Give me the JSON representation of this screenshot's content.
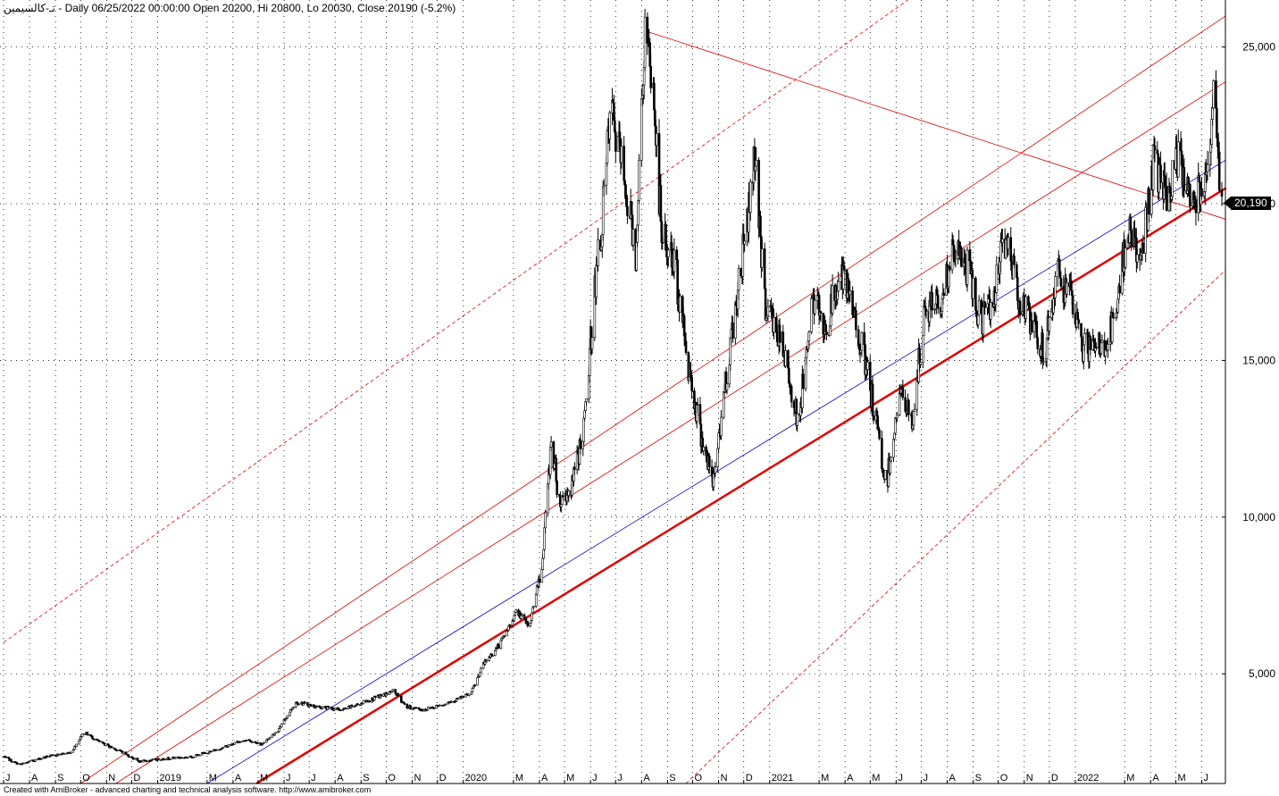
{
  "header": {
    "ticker": "تـ-كالسيمين",
    "summary": "- Daily 06/25/2022 00:00:00 Open 20200, Hi 20800, Lo 20030, Close 20190 (-5.2%)"
  },
  "footer": {
    "credit": "Created with AmiBroker - advanced charting and technical analysis software. http://www.amibroker.com"
  },
  "last_price_label": "20,190",
  "colors": {
    "background": "#ffffff",
    "candles": "#000000",
    "channel_red": "#e00000",
    "midline_blue": "#0000cc",
    "grid": "#000000",
    "price_label_bg": "#000000"
  },
  "chart_data": {
    "type": "candlestick",
    "title": "",
    "x_range": [
      "2018-07-01",
      "2022-06-25"
    ],
    "ylim": [
      1500,
      26500
    ],
    "y_ticks": [
      5000,
      10000,
      15000,
      20000,
      25000
    ],
    "y_tick_labels": [
      "5,000",
      "10,000",
      "15,000",
      "20,000",
      "25,000"
    ],
    "grid": "dotted",
    "x_ticks": [
      {
        "label": "J",
        "date": "2018-07-01"
      },
      {
        "label": "A",
        "date": "2018-08-01"
      },
      {
        "label": "S",
        "date": "2018-09-01"
      },
      {
        "label": "O",
        "date": "2018-10-01"
      },
      {
        "label": "N",
        "date": "2018-11-01"
      },
      {
        "label": "D",
        "date": "2018-12-01"
      },
      {
        "label": "2019",
        "date": "2019-01-01"
      },
      {
        "label": "M",
        "date": "2019-03-01"
      },
      {
        "label": "A",
        "date": "2019-04-01"
      },
      {
        "label": "M",
        "date": "2019-05-01"
      },
      {
        "label": "J",
        "date": "2019-06-01"
      },
      {
        "label": "J",
        "date": "2019-07-01"
      },
      {
        "label": "A",
        "date": "2019-08-01"
      },
      {
        "label": "S",
        "date": "2019-09-01"
      },
      {
        "label": "O",
        "date": "2019-10-01"
      },
      {
        "label": "N",
        "date": "2019-11-01"
      },
      {
        "label": "D",
        "date": "2019-12-01"
      },
      {
        "label": "2020",
        "date": "2020-01-01"
      },
      {
        "label": "M",
        "date": "2020-03-01"
      },
      {
        "label": "A",
        "date": "2020-04-01"
      },
      {
        "label": "M",
        "date": "2020-05-01"
      },
      {
        "label": "J",
        "date": "2020-06-01"
      },
      {
        "label": "J",
        "date": "2020-07-01"
      },
      {
        "label": "A",
        "date": "2020-08-01"
      },
      {
        "label": "S",
        "date": "2020-09-01"
      },
      {
        "label": "O",
        "date": "2020-10-01"
      },
      {
        "label": "N",
        "date": "2020-11-01"
      },
      {
        "label": "D",
        "date": "2020-12-01"
      },
      {
        "label": "2021",
        "date": "2021-01-01"
      },
      {
        "label": "M",
        "date": "2021-03-01"
      },
      {
        "label": "A",
        "date": "2021-04-01"
      },
      {
        "label": "M",
        "date": "2021-05-01"
      },
      {
        "label": "J",
        "date": "2021-06-01"
      },
      {
        "label": "J",
        "date": "2021-07-01"
      },
      {
        "label": "A",
        "date": "2021-08-01"
      },
      {
        "label": "S",
        "date": "2021-09-01"
      },
      {
        "label": "O",
        "date": "2021-10-01"
      },
      {
        "label": "N",
        "date": "2021-11-01"
      },
      {
        "label": "D",
        "date": "2021-12-01"
      },
      {
        "label": "2022",
        "date": "2022-01-01"
      },
      {
        "label": "M",
        "date": "2022-03-01"
      },
      {
        "label": "A",
        "date": "2022-04-01"
      },
      {
        "label": "M",
        "date": "2022-05-01"
      },
      {
        "label": "J",
        "date": "2022-06-01"
      }
    ],
    "price_path": [
      [
        "2018-07-01",
        2350
      ],
      [
        "2018-07-20",
        2100
      ],
      [
        "2018-08-20",
        2350
      ],
      [
        "2018-09-20",
        2500
      ],
      [
        "2018-10-05",
        3150
      ],
      [
        "2018-10-25",
        2800
      ],
      [
        "2018-11-20",
        2500
      ],
      [
        "2018-12-10",
        2200
      ],
      [
        "2019-01-10",
        2300
      ],
      [
        "2019-02-10",
        2350
      ],
      [
        "2019-03-15",
        2600
      ],
      [
        "2019-04-15",
        2900
      ],
      [
        "2019-05-05",
        2750
      ],
      [
        "2019-05-25",
        3200
      ],
      [
        "2019-06-15",
        4100
      ],
      [
        "2019-07-10",
        3950
      ],
      [
        "2019-08-10",
        3850
      ],
      [
        "2019-09-15",
        4200
      ],
      [
        "2019-10-10",
        4450
      ],
      [
        "2019-10-25",
        3950
      ],
      [
        "2019-11-15",
        3850
      ],
      [
        "2019-12-15",
        4100
      ],
      [
        "2020-01-10",
        4350
      ],
      [
        "2020-01-25",
        5300
      ],
      [
        "2020-02-15",
        6000
      ],
      [
        "2020-03-05",
        7000
      ],
      [
        "2020-03-20",
        6500
      ],
      [
        "2020-04-05",
        8700
      ],
      [
        "2020-04-15",
        12500
      ],
      [
        "2020-04-25",
        10500
      ],
      [
        "2020-05-10",
        11000
      ],
      [
        "2020-05-25",
        13000
      ],
      [
        "2020-06-05",
        17000
      ],
      [
        "2020-06-15",
        19500
      ],
      [
        "2020-06-25",
        23000
      ],
      [
        "2020-07-10",
        21000
      ],
      [
        "2020-07-25",
        18500
      ],
      [
        "2020-08-05",
        25500
      ],
      [
        "2020-08-15",
        23500
      ],
      [
        "2020-08-25",
        19000
      ],
      [
        "2020-09-10",
        18000
      ],
      [
        "2020-09-25",
        15000
      ],
      [
        "2020-10-10",
        12800
      ],
      [
        "2020-10-25",
        11000
      ],
      [
        "2020-11-10",
        14500
      ],
      [
        "2020-11-25",
        17500
      ],
      [
        "2020-12-05",
        19500
      ],
      [
        "2020-12-15",
        21700
      ],
      [
        "2020-12-25",
        17000
      ],
      [
        "2021-01-15",
        15500
      ],
      [
        "2021-02-05",
        13000
      ],
      [
        "2021-02-20",
        17000
      ],
      [
        "2021-03-10",
        16000
      ],
      [
        "2021-03-25",
        17800
      ],
      [
        "2021-04-15",
        16200
      ],
      [
        "2021-05-05",
        13500
      ],
      [
        "2021-05-20",
        11000
      ],
      [
        "2021-06-05",
        14000
      ],
      [
        "2021-06-20",
        13000
      ],
      [
        "2021-07-05",
        16500
      ],
      [
        "2021-07-25",
        17000
      ],
      [
        "2021-08-10",
        18500
      ],
      [
        "2021-08-25",
        18000
      ],
      [
        "2021-09-10",
        16200
      ],
      [
        "2021-09-25",
        17000
      ],
      [
        "2021-10-10",
        19000
      ],
      [
        "2021-10-25",
        17200
      ],
      [
        "2021-11-10",
        16000
      ],
      [
        "2021-11-25",
        15200
      ],
      [
        "2021-12-10",
        17800
      ],
      [
        "2021-12-25",
        17000
      ],
      [
        "2022-01-10",
        15500
      ],
      [
        "2022-01-25",
        15300
      ],
      [
        "2022-02-10",
        15700
      ],
      [
        "2022-02-20",
        16500
      ],
      [
        "2022-03-05",
        19500
      ],
      [
        "2022-03-20",
        18000
      ],
      [
        "2022-04-05",
        21500
      ],
      [
        "2022-04-20",
        20000
      ],
      [
        "2022-05-05",
        21500
      ],
      [
        "2022-05-20",
        20000
      ],
      [
        "2022-06-05",
        21000
      ],
      [
        "2022-06-15",
        23200
      ],
      [
        "2022-06-25",
        20190
      ]
    ],
    "trendlines": [
      {
        "style": "solid",
        "color": "#e00000",
        "width": 2.5,
        "points": [
          [
            "2019-04-29",
            1500
          ],
          [
            "2022-06-30",
            20500
          ]
        ]
      },
      {
        "style": "solid",
        "color": "#0000cc",
        "width": 0.8,
        "points": [
          [
            "2019-03-01",
            1500
          ],
          [
            "2022-06-30",
            21400
          ]
        ]
      },
      {
        "style": "solid",
        "color": "#e00000",
        "width": 0.8,
        "points": [
          [
            "2018-11-12",
            1500
          ],
          [
            "2022-06-30",
            23900
          ]
        ]
      },
      {
        "style": "solid",
        "color": "#e00000",
        "width": 0.8,
        "points": [
          [
            "2018-10-01",
            1500
          ],
          [
            "2022-06-30",
            26000
          ]
        ]
      },
      {
        "style": "dashed",
        "color": "#e00000",
        "width": 0.8,
        "points": [
          [
            "2018-07-01",
            6000
          ],
          [
            "2021-06-15",
            26500
          ]
        ]
      },
      {
        "style": "dashed",
        "color": "#e00000",
        "width": 0.8,
        "points": [
          [
            "2020-09-23",
            1500
          ],
          [
            "2022-06-30",
            17900
          ]
        ]
      },
      {
        "style": "solid",
        "color": "#e00000",
        "width": 0.8,
        "points": [
          [
            "2020-08-07",
            25500
          ],
          [
            "2022-06-30",
            19500
          ]
        ]
      }
    ],
    "legend": "none"
  }
}
